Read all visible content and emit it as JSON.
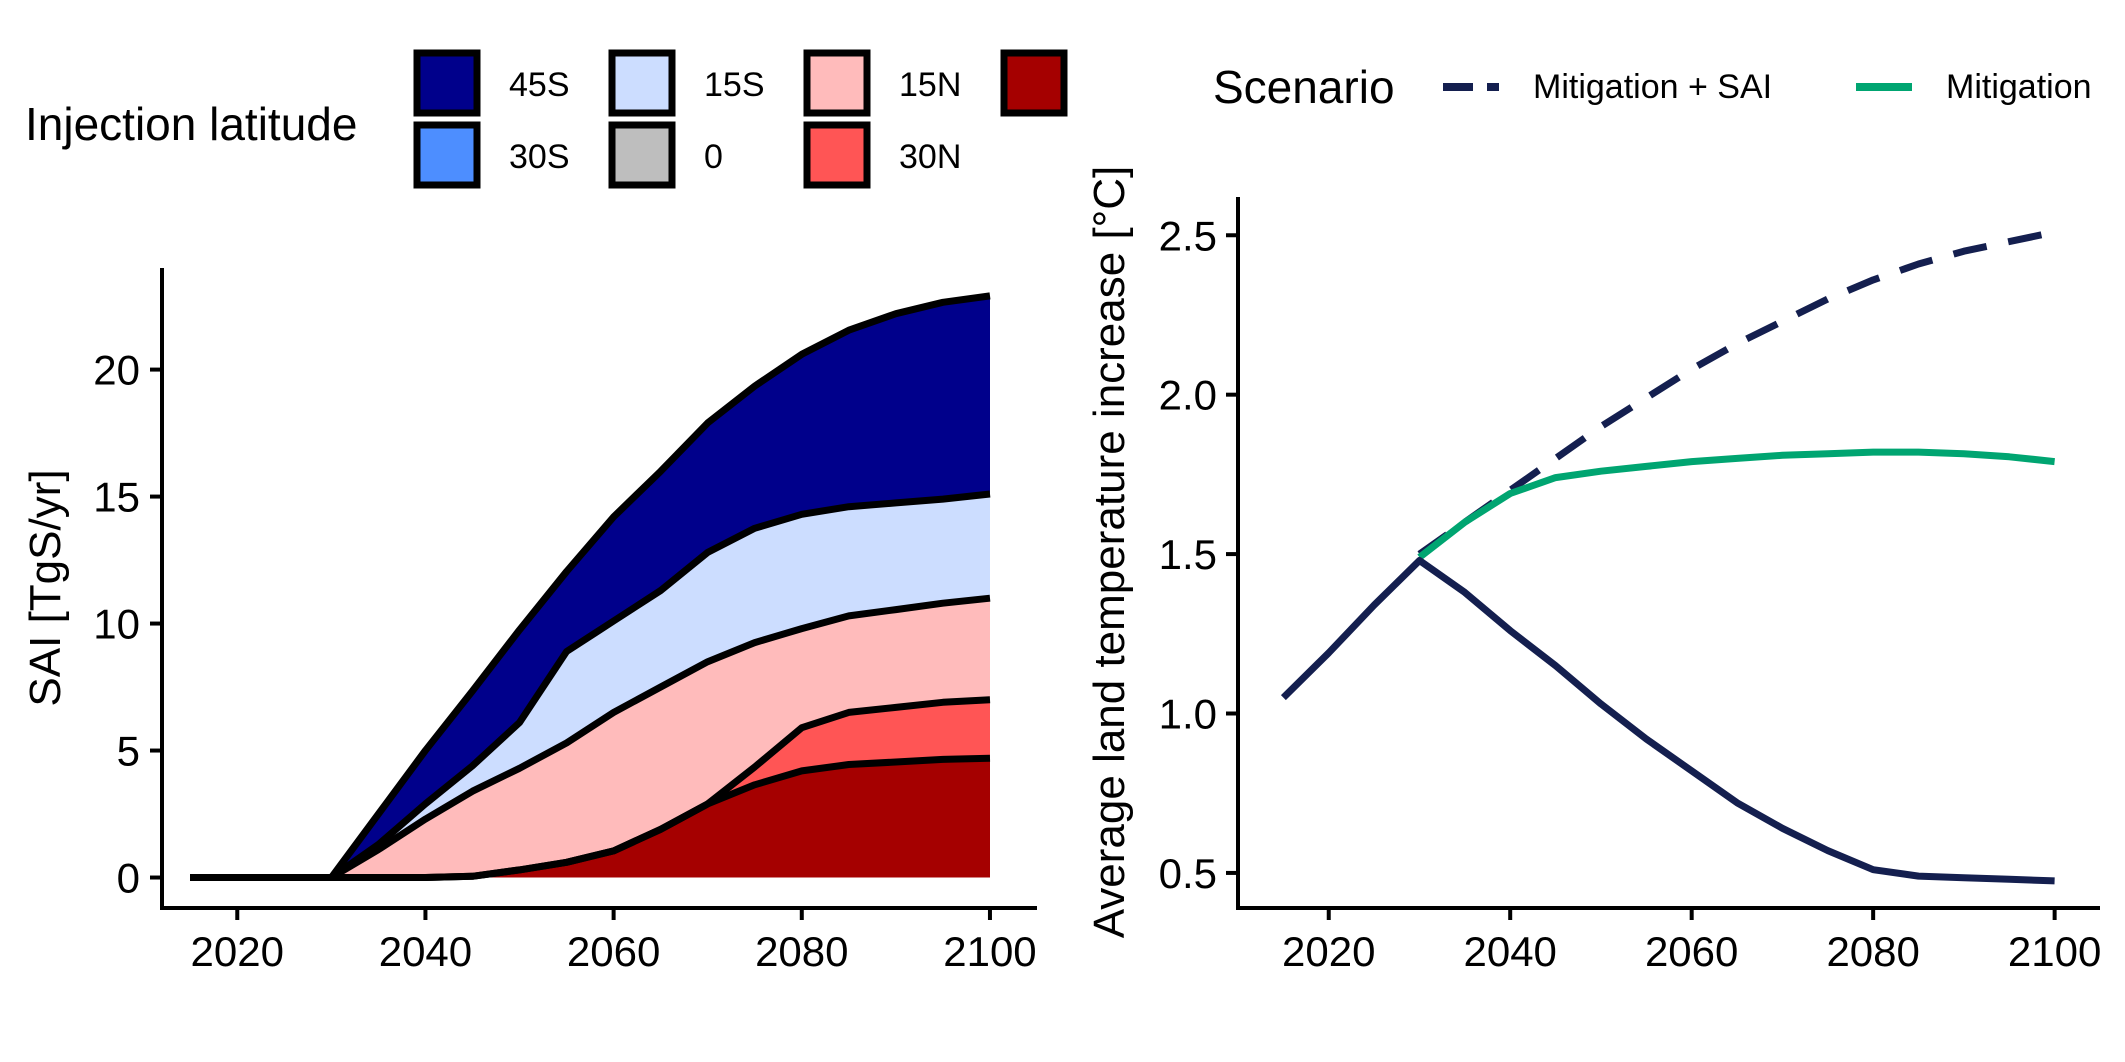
{
  "chart_data": [
    {
      "type": "area",
      "stacked": true,
      "xlabel": "",
      "ylabel": "SAI [TgS/yr]",
      "xlim": [
        2012,
        2105
      ],
      "ylim": [
        -1.2,
        24
      ],
      "x_ticks": [
        2020,
        2040,
        2060,
        2080,
        2100
      ],
      "x_tick_labels": [
        "2020",
        "2040",
        "2060",
        "2080",
        "2100"
      ],
      "y_ticks": [
        0,
        5,
        10,
        15,
        20
      ],
      "y_tick_labels": [
        "0",
        "5",
        "10",
        "15",
        "20"
      ],
      "legend": {
        "title": "Injection latitude",
        "placement": "top",
        "entries": [
          {
            "label": "45S",
            "color": "#00008B"
          },
          {
            "label": "15S",
            "color": "#CCDDFF"
          },
          {
            "label": "15N",
            "color": "#FFBBBB"
          },
          {
            "label": "",
            "color": "#A50000"
          },
          {
            "label": "30S",
            "color": "#4D8EFF"
          },
          {
            "label": "0",
            "color": "#BEBEBE"
          },
          {
            "label": "30N",
            "color": "#FF5555"
          }
        ]
      },
      "x": [
        2015,
        2020,
        2025,
        2030,
        2035,
        2040,
        2045,
        2050,
        2055,
        2060,
        2065,
        2070,
        2075,
        2080,
        2085,
        2090,
        2095,
        2100
      ],
      "series": [
        {
          "name": "",
          "color": "#A50000",
          "values": [
            0,
            0,
            0,
            0,
            0,
            0,
            0.05,
            0.3,
            0.6,
            1.05,
            1.9,
            2.9,
            3.65,
            4.2,
            4.45,
            4.55,
            4.65,
            4.7
          ]
        },
        {
          "name": "30N",
          "color": "#FF5555",
          "values": [
            0,
            0,
            0,
            0,
            0,
            0,
            0,
            0,
            0,
            0,
            0,
            0,
            0.7,
            1.7,
            2.05,
            2.15,
            2.25,
            2.3
          ]
        },
        {
          "name": "0",
          "color": "#BEBEBE",
          "values": [
            0,
            0,
            0,
            0,
            0,
            0,
            0,
            0,
            0,
            0,
            0,
            0,
            0,
            0,
            0,
            0,
            0,
            0
          ]
        },
        {
          "name": "15N",
          "color": "#FFBBBB",
          "values": [
            0,
            0,
            0,
            0,
            1.1,
            2.3,
            3.35,
            4.0,
            4.7,
            5.45,
            5.6,
            5.6,
            4.9,
            3.9,
            3.8,
            3.85,
            3.9,
            4.0
          ]
        },
        {
          "name": "30S",
          "color": "#4D8EFF",
          "values": [
            0,
            0,
            0,
            0,
            0,
            0,
            0,
            0,
            0,
            0,
            0,
            0,
            0,
            0,
            0,
            0,
            0,
            0
          ]
        },
        {
          "name": "15S",
          "color": "#CCDDFF",
          "values": [
            0,
            0,
            0,
            0,
            0.2,
            0.6,
            1.0,
            1.8,
            3.6,
            3.6,
            3.8,
            4.3,
            4.5,
            4.5,
            4.3,
            4.2,
            4.1,
            4.1
          ]
        },
        {
          "name": "45S",
          "color": "#00008B",
          "values": [
            0,
            0,
            0,
            0,
            1.2,
            2.1,
            2.95,
            3.65,
            3.15,
            4.1,
            4.7,
            5.1,
            5.6,
            6.3,
            6.95,
            7.45,
            7.75,
            7.8
          ]
        }
      ],
      "outlined_series": [
        "",
        "30N",
        "15N",
        "15S",
        "45S"
      ]
    },
    {
      "type": "line",
      "xlabel": "",
      "ylabel": "Average land temperature increase [°C]",
      "xlim": [
        2010,
        2105
      ],
      "ylim": [
        0.39,
        2.62
      ],
      "x_ticks": [
        2020,
        2040,
        2060,
        2080,
        2100
      ],
      "x_tick_labels": [
        "2020",
        "2040",
        "2060",
        "2080",
        "2100"
      ],
      "y_ticks": [
        0.5,
        1.0,
        1.5,
        2.0,
        2.5
      ],
      "y_tick_labels": [
        "0.5",
        "1.0",
        "1.5",
        "2.0",
        "2.5"
      ],
      "legend": {
        "title": "Scenario",
        "placement": "top",
        "entries": [
          {
            "label": "Mitigation + SAI",
            "color": "#141F4F",
            "linetype": "dashed"
          },
          {
            "label": "Mitigation",
            "color": "#00A571",
            "linetype": "solid"
          }
        ]
      },
      "series": [
        {
          "name": "Mitigation + SAI",
          "color": "#141F4F",
          "linetype": "dashed",
          "x": [
            2030,
            2035,
            2040,
            2045,
            2050,
            2055,
            2060,
            2065,
            2070,
            2075,
            2080,
            2085,
            2090,
            2095,
            2100
          ],
          "values": [
            1.5,
            1.6,
            1.7,
            1.8,
            1.9,
            1.99,
            2.08,
            2.16,
            2.23,
            2.3,
            2.36,
            2.41,
            2.45,
            2.48,
            2.51
          ]
        },
        {
          "name": "Mitigation",
          "color": "#00A571",
          "linetype": "solid",
          "x": [
            2030,
            2035,
            2040,
            2045,
            2050,
            2055,
            2060,
            2065,
            2070,
            2075,
            2080,
            2085,
            2090,
            2095,
            2100
          ],
          "values": [
            1.49,
            1.6,
            1.69,
            1.74,
            1.76,
            1.775,
            1.79,
            1.8,
            1.81,
            1.815,
            1.82,
            1.82,
            1.815,
            1.805,
            1.79
          ]
        },
        {
          "name": "",
          "color": "#141F4F",
          "linetype": "solid",
          "x": [
            2015,
            2020,
            2025,
            2030,
            2035,
            2040,
            2045,
            2050,
            2055,
            2060,
            2065,
            2070,
            2075,
            2080,
            2085,
            2090,
            2095,
            2100
          ],
          "values": [
            1.05,
            1.19,
            1.34,
            1.48,
            1.38,
            1.26,
            1.15,
            1.03,
            0.92,
            0.82,
            0.72,
            0.64,
            0.57,
            0.51,
            0.49,
            0.485,
            0.48,
            0.475
          ]
        }
      ]
    }
  ]
}
